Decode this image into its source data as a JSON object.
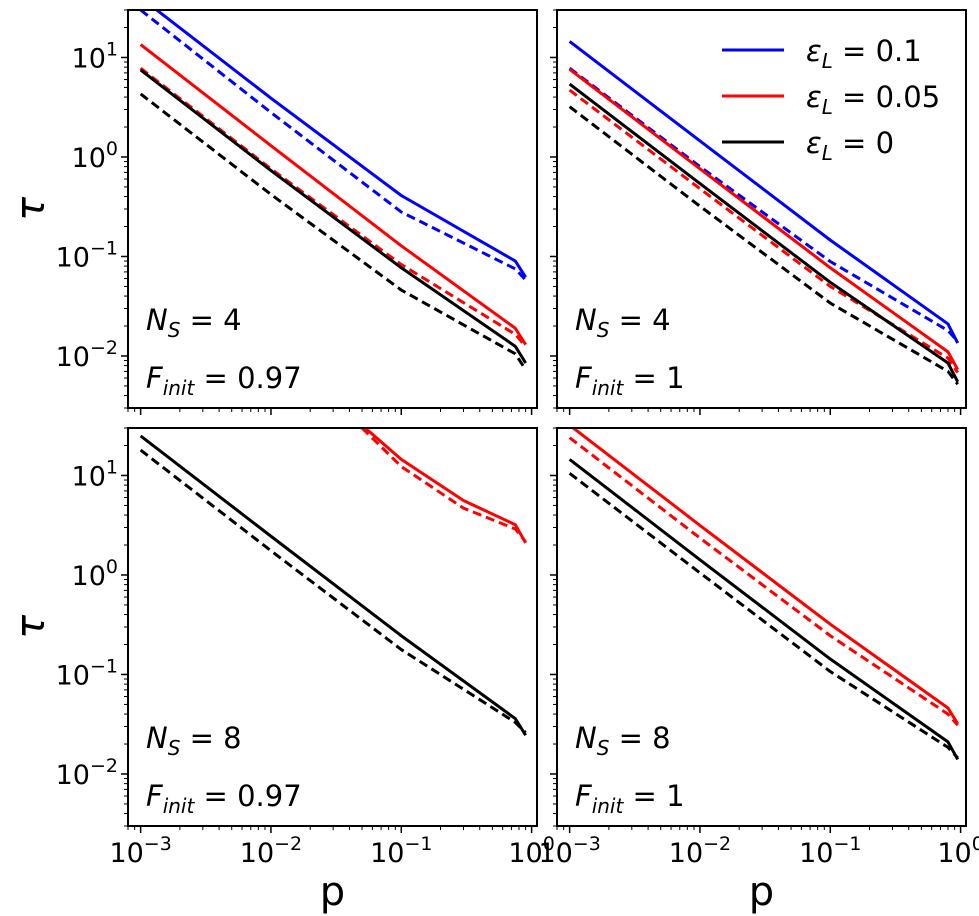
{
  "chart_data": {
    "type": "line",
    "scale": {
      "x": "log",
      "y": "log"
    },
    "xlim": [
      0.0008,
      1.1
    ],
    "ylim": [
      0.003,
      30
    ],
    "x_ticks": [
      {
        "value": 0.001,
        "base": "10",
        "exp": "−3"
      },
      {
        "value": 0.01,
        "base": "10",
        "exp": "−2"
      },
      {
        "value": 0.1,
        "base": "10",
        "exp": "−1"
      },
      {
        "value": 1,
        "base": "10",
        "exp": "0"
      }
    ],
    "y_ticks": [
      {
        "value": 0.01,
        "base": "10",
        "exp": "−2"
      },
      {
        "value": 0.1,
        "base": "10",
        "exp": "−1"
      },
      {
        "value": 1,
        "base": "10",
        "exp": "0"
      },
      {
        "value": 10,
        "base": "10",
        "exp": "1"
      }
    ],
    "xlabel": "p",
    "ylabel": "τ",
    "legend": {
      "placement": "top-right",
      "entries": [
        {
          "label": "ε",
          "sub": "L",
          "value": " = 0.1",
          "color": "#0000ff"
        },
        {
          "label": "ε",
          "sub": "L",
          "value": " = 0.05",
          "color": "#ff0000"
        },
        {
          "label": "ε",
          "sub": "L",
          "value": " = 0",
          "color": "#000000"
        }
      ]
    },
    "panels": [
      {
        "name": "ns4-f097",
        "annotation": {
          "ns": "4",
          "f": "0.97"
        },
        "series": [
          {
            "name": "ε_L = 0.1 solid",
            "color": "#0000ff",
            "dashed": false,
            "x": [
              0.001,
              0.01,
              0.1,
              0.75,
              0.9
            ],
            "y": [
              40,
              3.9,
              0.41,
              0.09,
              0.062
            ]
          },
          {
            "name": "ε_L = 0.1 dashed",
            "color": "#0000ff",
            "dashed": true,
            "x": [
              0.001,
              0.01,
              0.1,
              0.75,
              0.9
            ],
            "y": [
              30,
              2.8,
              0.28,
              0.075,
              0.058
            ]
          },
          {
            "name": "ε_L = 0.05 solid",
            "color": "#ff0000",
            "dashed": false,
            "x": [
              0.001,
              0.01,
              0.1,
              0.75,
              0.9
            ],
            "y": [
              13.5,
              1.3,
              0.128,
              0.019,
              0.013
            ]
          },
          {
            "name": "ε_L = 0.05 dashed",
            "color": "#ff0000",
            "dashed": true,
            "x": [
              0.001,
              0.01,
              0.1,
              0.75,
              0.9
            ],
            "y": [
              7.8,
              0.76,
              0.083,
              0.0165,
              0.0125
            ]
          },
          {
            "name": "ε_L = 0 solid",
            "color": "#000000",
            "dashed": false,
            "x": [
              0.001,
              0.01,
              0.1,
              0.75,
              0.9
            ],
            "y": [
              7.5,
              0.73,
              0.077,
              0.0125,
              0.0085
            ]
          },
          {
            "name": "ε_L = 0 dashed",
            "color": "#000000",
            "dashed": true,
            "x": [
              0.001,
              0.01,
              0.1,
              0.75,
              0.9
            ],
            "y": [
              4.3,
              0.42,
              0.046,
              0.0105,
              0.0073
            ]
          }
        ]
      },
      {
        "name": "ns4-f1",
        "annotation": {
          "ns": "4",
          "f": "1"
        },
        "series": [
          {
            "name": "ε_L = 0.1 solid",
            "color": "#0000ff",
            "dashed": false,
            "x": [
              0.001,
              0.01,
              0.1,
              0.8,
              0.95
            ],
            "y": [
              14.5,
              1.45,
              0.146,
              0.021,
              0.0135
            ]
          },
          {
            "name": "ε_L = 0.1 dashed",
            "color": "#0000ff",
            "dashed": true,
            "x": [
              0.001,
              0.01,
              0.1,
              0.8,
              0.95
            ],
            "y": [
              7.8,
              0.8,
              0.089,
              0.018,
              0.014
            ]
          },
          {
            "name": "ε_L = 0.05 solid",
            "color": "#ff0000",
            "dashed": false,
            "x": [
              0.001,
              0.01,
              0.1,
              0.8,
              0.95
            ],
            "y": [
              7.6,
              0.76,
              0.077,
              0.011,
              0.0073
            ]
          },
          {
            "name": "ε_L = 0.05 dashed",
            "color": "#ff0000",
            "dashed": true,
            "x": [
              0.001,
              0.01,
              0.1,
              0.8,
              0.95
            ],
            "y": [
              4.7,
              0.48,
              0.05,
              0.0095,
              0.0068
            ]
          },
          {
            "name": "ε_L = 0 solid",
            "color": "#000000",
            "dashed": false,
            "x": [
              0.001,
              0.01,
              0.1,
              0.8,
              0.95
            ],
            "y": [
              5.4,
              0.54,
              0.055,
              0.0085,
              0.0055
            ]
          },
          {
            "name": "ε_L = 0 dashed",
            "color": "#000000",
            "dashed": true,
            "x": [
              0.001,
              0.01,
              0.1,
              0.8,
              0.95
            ],
            "y": [
              3.2,
              0.32,
              0.034,
              0.007,
              0.0052
            ]
          }
        ]
      },
      {
        "name": "ns8-f097",
        "annotation": {
          "ns": "8",
          "f": "0.97"
        },
        "series": [
          {
            "name": "ε_L = 0.05 solid",
            "color": "#ff0000",
            "dashed": false,
            "x": [
              0.05,
              0.1,
              0.3,
              0.75,
              0.9
            ],
            "y": [
              32,
              14.5,
              5.6,
              3.2,
              2.1
            ]
          },
          {
            "name": "ε_L = 0.05 dashed",
            "color": "#ff0000",
            "dashed": true,
            "x": [
              0.05,
              0.1,
              0.3,
              0.75,
              0.9
            ],
            "y": [
              30,
              12.3,
              4.7,
              2.9,
              2.15
            ]
          },
          {
            "name": "ε_L = 0 solid",
            "color": "#000000",
            "dashed": false,
            "x": [
              0.001,
              0.01,
              0.1,
              0.75,
              0.9
            ],
            "y": [
              25,
              2.45,
              0.245,
              0.036,
              0.0245
            ]
          },
          {
            "name": "ε_L = 0 dashed",
            "color": "#000000",
            "dashed": true,
            "x": [
              0.001,
              0.01,
              0.1,
              0.75,
              0.9
            ],
            "y": [
              18,
              1.75,
              0.178,
              0.033,
              0.026
            ]
          }
        ]
      },
      {
        "name": "ns8-f1",
        "annotation": {
          "ns": "8",
          "f": "1"
        },
        "series": [
          {
            "name": "ε_L = 0.05 solid",
            "color": "#ff0000",
            "dashed": false,
            "x": [
              0.001,
              0.01,
              0.1,
              0.8,
              0.95
            ],
            "y": [
              32,
              3.15,
              0.32,
              0.046,
              0.032
            ]
          },
          {
            "name": "ε_L = 0.05 dashed",
            "color": "#ff0000",
            "dashed": true,
            "x": [
              0.001,
              0.01,
              0.1,
              0.8,
              0.95
            ],
            "y": [
              24,
              2.35,
              0.245,
              0.04,
              0.031
            ]
          },
          {
            "name": "ε_L = 0 solid",
            "color": "#000000",
            "dashed": false,
            "x": [
              0.001,
              0.01,
              0.1,
              0.8,
              0.95
            ],
            "y": [
              14.5,
              1.42,
              0.143,
              0.021,
              0.014
            ]
          },
          {
            "name": "ε_L = 0 dashed",
            "color": "#000000",
            "dashed": true,
            "x": [
              0.001,
              0.01,
              0.1,
              0.8,
              0.95
            ],
            "y": [
              10.5,
              1.05,
              0.107,
              0.0185,
              0.0145
            ]
          }
        ]
      }
    ]
  }
}
